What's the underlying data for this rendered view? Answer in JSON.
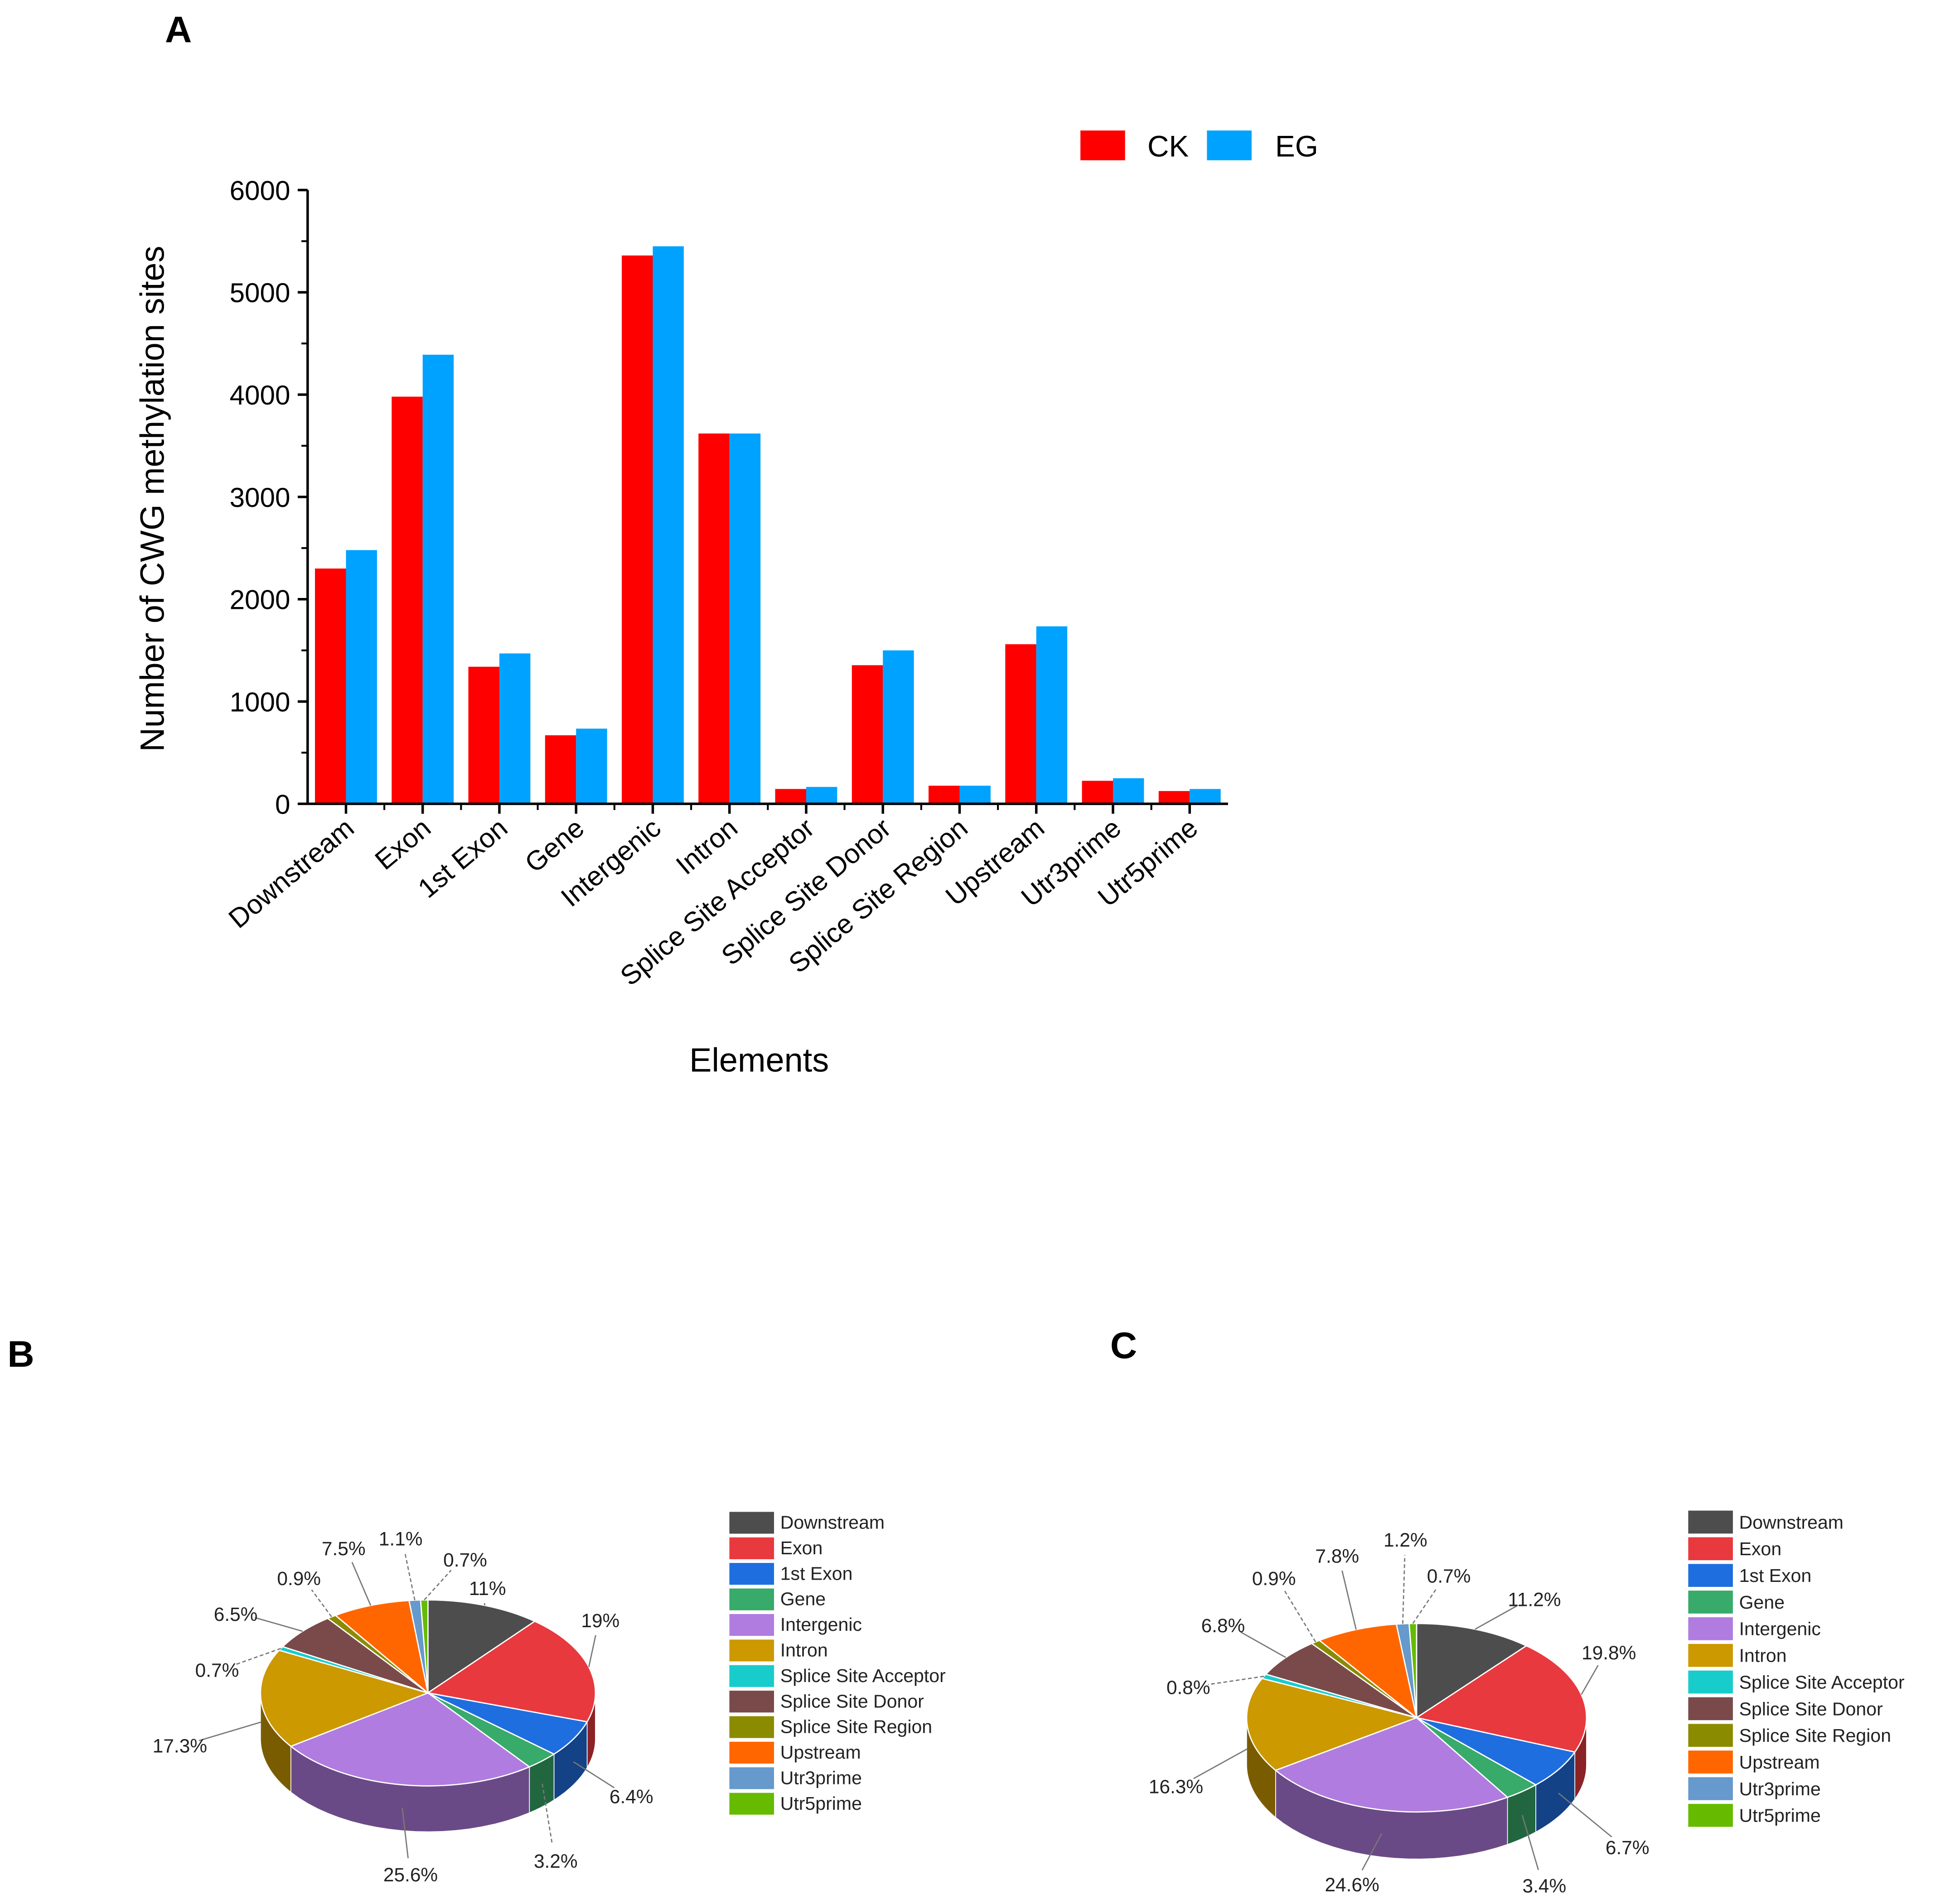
{
  "panels": {
    "a": "A",
    "b": "B",
    "c": "C"
  },
  "chart_data": [
    {
      "type": "bar",
      "title": "",
      "xlabel": "Elements",
      "ylabel": "Number of CWG methylation sites",
      "ylim": [
        0,
        6000
      ],
      "yticks": [
        "0",
        "1000",
        "2000",
        "3000",
        "4000",
        "5000",
        "6000"
      ],
      "legend_position": "top-right",
      "categories": [
        "Downstream",
        "Exon",
        "1st Exon",
        "Gene",
        "Intergenic",
        "Intron",
        "Splice Site Acceptor",
        "Splice Site Donor",
        "Splice Site Region",
        "Upstream",
        "Utr3prime",
        "Utr5prime"
      ],
      "series": [
        {
          "name": "CK",
          "color": "#ff0000",
          "values": [
            2300,
            3980,
            1340,
            670,
            5360,
            3620,
            145,
            1355,
            177,
            1560,
            225,
            125
          ]
        },
        {
          "name": "EG",
          "color": "#00a2ff",
          "values": [
            2480,
            4390,
            1470,
            735,
            5450,
            3620,
            165,
            1500,
            177,
            1735,
            250,
            145
          ]
        }
      ]
    },
    {
      "type": "pie",
      "panel": "B",
      "labels": [
        "Downstream",
        "Exon",
        "1st Exon",
        "Gene",
        "Intergenic",
        "Intron",
        "Splice Site Acceptor",
        "Splice Site Donor",
        "Splice Site Region",
        "Upstream",
        "Utr3prime",
        "Utr5prime"
      ],
      "values": [
        11,
        19,
        6.4,
        3.2,
        25.6,
        17.3,
        0.7,
        6.5,
        0.9,
        7.5,
        1.1,
        0.7
      ],
      "value_labels": [
        "11%",
        "19%",
        "6.4%",
        "3.2%",
        "25.6%",
        "17.3%",
        "0.7%",
        "6.5%",
        "0.9%",
        "7.5%",
        "1.1%",
        "0.7%"
      ],
      "legend_position": "right"
    },
    {
      "type": "pie",
      "panel": "C",
      "labels": [
        "Downstream",
        "Exon",
        "1st Exon",
        "Gene",
        "Intergenic",
        "Intron",
        "Splice Site Acceptor",
        "Splice Site Donor",
        "Splice Site Region",
        "Upstream",
        "Utr3prime",
        "Utr5prime"
      ],
      "values": [
        11.2,
        19.8,
        6.7,
        3.4,
        24.6,
        16.3,
        0.8,
        6.8,
        0.9,
        7.8,
        1.2,
        0.7
      ],
      "value_labels": [
        "11.2%",
        "19.8%",
        "6.7%",
        "3.4%",
        "24.6%",
        "16.3%",
        "0.8%",
        "6.8%",
        "0.9%",
        "7.8%",
        "1.2%",
        "0.7%"
      ],
      "legend_position": "right"
    }
  ],
  "pie_colors": [
    "#4d4d4d",
    "#e8393e",
    "#1f6ee0",
    "#38aa6a",
    "#b07ce0",
    "#cc9900",
    "#18cccc",
    "#7a4a4a",
    "#8b8b00",
    "#ff6600",
    "#6699cc",
    "#66bb00"
  ]
}
